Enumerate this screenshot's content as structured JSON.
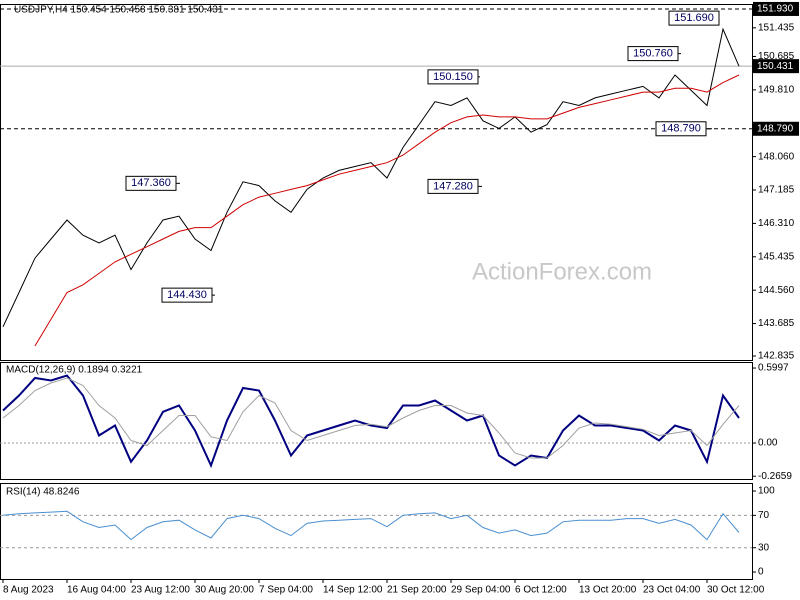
{
  "chart_data": [
    {
      "type": "line",
      "title": "USDJPY,H4  150.454 150.458 150.381 150.431",
      "watermark": "ActionForex.com",
      "categories": [
        "8 Aug 2023",
        null,
        null,
        null,
        "16 Aug 04:00",
        null,
        null,
        null,
        "23 Aug 12:00",
        null,
        null,
        null,
        "30 Aug 20:00",
        null,
        null,
        null,
        "7 Sep 04:00",
        null,
        null,
        null,
        "14 Sep 12:00",
        null,
        null,
        null,
        "21 Sep 20:00",
        null,
        null,
        null,
        "29 Sep 04:00",
        null,
        null,
        null,
        "6 Oct 12:00",
        null,
        null,
        null,
        "13 Oct 20:00",
        null,
        null,
        null,
        "23 Oct 04:00",
        null,
        null,
        null,
        "30 Oct 12:00",
        null,
        null
      ],
      "series": [
        {
          "color": "#000000",
          "values": [
            143.6,
            144.5,
            145.4,
            145.9,
            146.4,
            146.0,
            145.8,
            146.0,
            145.1,
            145.8,
            146.4,
            146.5,
            145.9,
            145.6,
            146.6,
            147.4,
            147.3,
            146.9,
            146.6,
            147.2,
            147.5,
            147.7,
            147.8,
            147.9,
            147.5,
            148.3,
            148.9,
            149.5,
            149.4,
            149.6,
            149.0,
            148.8,
            149.1,
            148.7,
            148.9,
            149.5,
            149.4,
            149.6,
            149.7,
            149.8,
            149.9,
            149.6,
            150.2,
            149.8,
            149.4,
            151.4,
            150.431
          ]
        },
        {
          "color": "#d00000",
          "values": [
            null,
            null,
            143.1,
            143.8,
            144.5,
            144.7,
            145.0,
            145.3,
            145.5,
            145.7,
            145.9,
            146.1,
            146.2,
            146.2,
            146.5,
            146.8,
            147.0,
            147.1,
            147.2,
            147.3,
            147.45,
            147.6,
            147.7,
            147.8,
            147.9,
            148.1,
            148.4,
            148.7,
            148.95,
            149.1,
            149.15,
            149.1,
            149.1,
            149.05,
            149.05,
            149.2,
            149.35,
            149.45,
            149.55,
            149.65,
            149.75,
            149.75,
            149.85,
            149.85,
            149.75,
            150.0,
            150.2
          ]
        }
      ],
      "ylim": [
        142.73,
        152.06
      ],
      "yticks": [
        {
          "value": 151.435,
          "label": "151.435"
        },
        {
          "value": 150.685,
          "label": "150.685"
        },
        {
          "value": 149.81,
          "label": "149.810"
        },
        {
          "value": 148.06,
          "label": "148.060"
        },
        147.185,
        {
          "value": 146.31,
          "label": "146.310"
        },
        145.435,
        {
          "value": 144.56,
          "label": "144.560"
        },
        143.685,
        142.835
      ],
      "price_levels": [
        {
          "value": 151.93,
          "label": "151.930"
        },
        {
          "value": 150.431,
          "label": "150.431"
        },
        {
          "value": 148.79,
          "label": "148.790"
        }
      ],
      "annotations": [
        {
          "value": 151.69,
          "label": "151.690"
        },
        {
          "value": 150.76,
          "label": "150.760"
        },
        {
          "value": 150.15,
          "label": "150.150"
        },
        {
          "value": 147.36,
          "label": "147.360"
        },
        {
          "value": 147.28,
          "label": "147.280"
        },
        {
          "value": 144.43,
          "label": "144.430"
        },
        {
          "value": 148.79,
          "label": "148.790"
        }
      ]
    },
    {
      "type": "line",
      "title": "MACD(12,26,9) 0.1894 0.3221",
      "series": [
        {
          "color": "#000080",
          "values": [
            0.26,
            0.38,
            0.52,
            0.5,
            0.54,
            0.38,
            0.06,
            0.14,
            -0.15,
            0.02,
            0.25,
            0.3,
            0.1,
            -0.18,
            0.18,
            0.44,
            0.42,
            0.18,
            -0.1,
            0.06,
            0.1,
            0.14,
            0.18,
            0.14,
            0.12,
            0.3,
            0.3,
            0.34,
            0.26,
            0.18,
            0.22,
            -0.1,
            -0.18,
            -0.1,
            -0.12,
            0.1,
            0.22,
            0.14,
            0.14,
            0.12,
            0.1,
            0.02,
            0.14,
            0.1,
            -0.15,
            0.38,
            0.2
          ]
        },
        {
          "color": "#a0a0a0",
          "values": [
            0.2,
            0.3,
            0.42,
            0.48,
            0.52,
            0.46,
            0.3,
            0.2,
            0.02,
            -0.02,
            0.1,
            0.22,
            0.22,
            0.05,
            0.02,
            0.25,
            0.38,
            0.32,
            0.1,
            0.02,
            0.06,
            0.1,
            0.14,
            0.15,
            0.13,
            0.2,
            0.26,
            0.3,
            0.3,
            0.24,
            0.22,
            0.08,
            -0.08,
            -0.12,
            -0.12,
            -0.02,
            0.12,
            0.16,
            0.15,
            0.13,
            0.11,
            0.06,
            0.08,
            0.1,
            -0.02,
            0.15,
            0.3
          ]
        }
      ],
      "ylim": [
        -0.288,
        0.648
      ],
      "yticks": [
        0.5997,
        {
          "value": 0,
          "label": "0.00"
        },
        -0.2659
      ]
    },
    {
      "type": "line",
      "title": "RSI(14) 48.8246",
      "series": [
        {
          "color": "#4a8fd0",
          "values": [
            70,
            72,
            73,
            74,
            75,
            62,
            55,
            58,
            40,
            55,
            62,
            64,
            52,
            42,
            66,
            70,
            66,
            54,
            45,
            60,
            63,
            64,
            65,
            66,
            56,
            70,
            72,
            73,
            66,
            70,
            55,
            48,
            52,
            45,
            48,
            62,
            64,
            64,
            64,
            66,
            66,
            60,
            65,
            58,
            40,
            72,
            48.8246
          ]
        }
      ],
      "ylim": [
        -8.6,
        109.9
      ],
      "yticks": [
        100,
        70,
        30,
        0
      ]
    }
  ]
}
